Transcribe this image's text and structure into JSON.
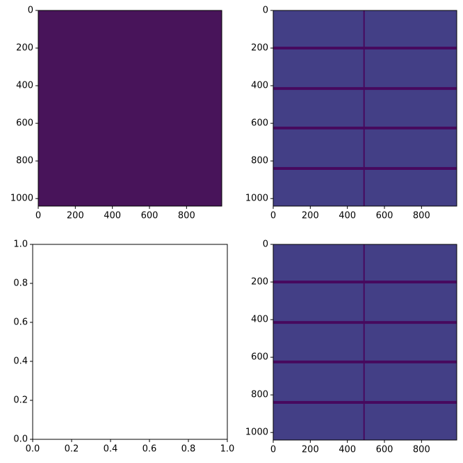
{
  "chart_data": [
    {
      "type": "image",
      "fill_color": "#48145a",
      "xlim": [
        0,
        990
      ],
      "ylim": [
        1040,
        0
      ],
      "xticks": [
        0,
        200,
        400,
        600,
        800
      ],
      "yticks": [
        0,
        200,
        400,
        600,
        800,
        1000
      ]
    },
    {
      "type": "image",
      "fill_color": "#433f86",
      "band_color": "#47095e",
      "row_bands": [
        200,
        415,
        625,
        840
      ],
      "column_bands": [
        490
      ],
      "xlim": [
        0,
        990
      ],
      "ylim": [
        1040,
        0
      ],
      "xticks": [
        0,
        200,
        400,
        600,
        800
      ],
      "yticks": [
        0,
        200,
        400,
        600,
        800,
        1000
      ]
    },
    {
      "type": "empty",
      "xlim": [
        0,
        1
      ],
      "ylim": [
        0,
        1
      ],
      "xticks": [
        {
          "value": 0,
          "label": "0.0"
        },
        0.2,
        0.4,
        0.6,
        0.8,
        {
          "value": 1,
          "label": "1.0"
        }
      ],
      "yticks": [
        {
          "value": 0,
          "label": "0.0"
        },
        0.2,
        0.4,
        0.6,
        0.8,
        {
          "value": 1,
          "label": "1.0"
        }
      ]
    },
    {
      "type": "image",
      "fill_color": "#433f86",
      "band_color": "#47095e",
      "row_bands": [
        200,
        415,
        625,
        840
      ],
      "column_bands": [
        490
      ],
      "xlim": [
        0,
        990
      ],
      "ylim": [
        1040,
        0
      ],
      "xticks": [
        0,
        200,
        400,
        600,
        800
      ],
      "yticks": [
        0,
        200,
        400,
        600,
        800,
        1000
      ]
    }
  ]
}
